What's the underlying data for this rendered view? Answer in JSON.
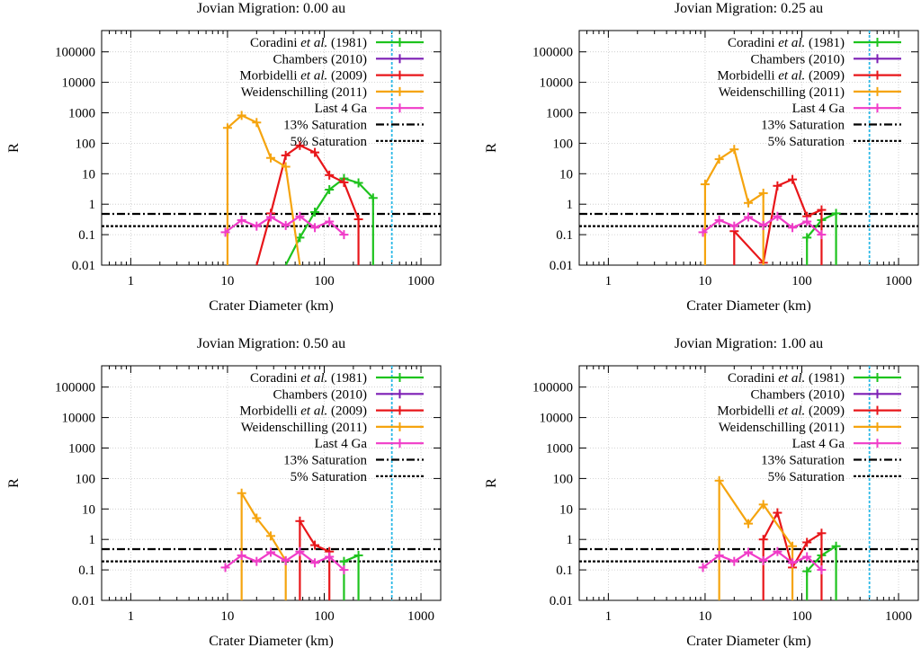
{
  "figure": {
    "x_axis_label": "Crater Diameter (km)",
    "y_axis_label": "R",
    "x_ticks": [
      "1",
      "10",
      "100",
      "1000"
    ],
    "y_ticks": [
      "0.01",
      "0.1",
      "1",
      "10",
      "100",
      "1000",
      "10000",
      "100000"
    ],
    "legend": [
      {
        "key": "coradini",
        "label": "Coradini",
        "italic": "et al.",
        "suffix": " (1981)",
        "color": "#1ec31e",
        "style": "solid"
      },
      {
        "key": "chambers",
        "label": "Chambers (2010)",
        "italic": "",
        "suffix": "",
        "color": "#7d1fb5",
        "style": "solid"
      },
      {
        "key": "morbidelli",
        "label": "Morbidelli",
        "italic": "et al.",
        "suffix": " (2009)",
        "color": "#e8161a",
        "style": "solid"
      },
      {
        "key": "weidenschilling",
        "label": "Weidenschilling (2011)",
        "italic": "",
        "suffix": "",
        "color": "#f5a40e",
        "style": "solid"
      },
      {
        "key": "last4ga",
        "label": "Last 4 Ga",
        "italic": "",
        "suffix": "",
        "color": "#f03cc8",
        "style": "solid"
      },
      {
        "key": "sat13",
        "label": "13% Saturation",
        "italic": "",
        "suffix": "",
        "color": "#000000",
        "style": "dashdot"
      },
      {
        "key": "sat5",
        "label": "5% Saturation",
        "italic": "",
        "suffix": "",
        "color": "#000000",
        "style": "dotted"
      }
    ]
  },
  "chart_data": [
    {
      "type": "line",
      "title": "Jovian Migration: 0.00 au",
      "xlabel": "Crater Diameter (km)",
      "ylabel": "R",
      "x_scale": "log",
      "y_scale": "log",
      "xlim": [
        0.5,
        1600
      ],
      "ylim": [
        0.01,
        500000
      ],
      "vline_x": 500,
      "saturation": {
        "sat13": 0.48,
        "sat5": 0.19
      },
      "series": [
        {
          "key": "coradini",
          "x": [
            40,
            56,
            80,
            113,
            160,
            226,
            320
          ],
          "y": [
            0.01,
            0.08,
            0.55,
            3.0,
            7.0,
            5.0,
            1.6
          ]
        },
        {
          "key": "morbidelli",
          "x": [
            20,
            28,
            40,
            56,
            80,
            113,
            160,
            226
          ],
          "y": [
            0.01,
            0.5,
            40,
            85,
            50,
            9,
            5.2,
            0.32
          ]
        },
        {
          "key": "weidenschilling",
          "x": [
            10,
            14,
            20,
            28,
            40,
            56
          ],
          "y": [
            320,
            820,
            480,
            33,
            17,
            0.01
          ]
        },
        {
          "key": "last4ga",
          "x": [
            9.5,
            14,
            20,
            28,
            40,
            56,
            80,
            113,
            160
          ],
          "y": [
            0.12,
            0.3,
            0.19,
            0.38,
            0.2,
            0.4,
            0.17,
            0.27,
            0.1
          ]
        }
      ]
    },
    {
      "type": "line",
      "title": "Jovian Migration: 0.25 au",
      "xlabel": "Crater Diameter (km)",
      "ylabel": "R",
      "x_scale": "log",
      "y_scale": "log",
      "xlim": [
        0.5,
        1600
      ],
      "ylim": [
        0.01,
        500000
      ],
      "vline_x": 500,
      "saturation": {
        "sat13": 0.48,
        "sat5": 0.19
      },
      "series": [
        {
          "key": "coradini",
          "x": [
            113,
            160,
            226
          ],
          "y": [
            0.08,
            0.3,
            0.5
          ]
        },
        {
          "key": "morbidelli",
          "x": [
            20,
            40,
            56,
            80,
            113,
            160
          ],
          "y": [
            0.13,
            0.012,
            4.0,
            6.5,
            0.4,
            0.65
          ]
        },
        {
          "key": "weidenschilling",
          "x": [
            10,
            14,
            20,
            28,
            40
          ],
          "y": [
            4.5,
            30,
            63,
            1.1,
            2.3
          ]
        },
        {
          "key": "last4ga",
          "x": [
            9.5,
            14,
            20,
            28,
            40,
            56,
            80,
            113,
            160
          ],
          "y": [
            0.12,
            0.3,
            0.19,
            0.38,
            0.2,
            0.4,
            0.17,
            0.27,
            0.1
          ]
        }
      ]
    },
    {
      "type": "line",
      "title": "Jovian Migration: 0.50 au",
      "xlabel": "Crater Diameter (km)",
      "ylabel": "R",
      "x_scale": "log",
      "y_scale": "log",
      "xlim": [
        0.5,
        1600
      ],
      "ylim": [
        0.01,
        500000
      ],
      "vline_x": 500,
      "saturation": {
        "sat13": 0.48,
        "sat5": 0.19
      },
      "series": [
        {
          "key": "coradini",
          "x": [
            160,
            226
          ],
          "y": [
            0.19,
            0.3
          ]
        },
        {
          "key": "morbidelli",
          "x": [
            56,
            80,
            113
          ],
          "y": [
            4.0,
            0.65,
            0.4
          ]
        },
        {
          "key": "weidenschilling",
          "x": [
            14,
            20,
            28,
            40
          ],
          "y": [
            33,
            5.0,
            1.3,
            0.2
          ]
        },
        {
          "key": "last4ga",
          "x": [
            9.5,
            14,
            20,
            28,
            40,
            56,
            80,
            113,
            160
          ],
          "y": [
            0.12,
            0.3,
            0.19,
            0.38,
            0.2,
            0.4,
            0.17,
            0.27,
            0.1
          ]
        }
      ]
    },
    {
      "type": "line",
      "title": "Jovian Migration: 1.00 au",
      "xlabel": "Crater Diameter (km)",
      "ylabel": "R",
      "x_scale": "log",
      "y_scale": "log",
      "xlim": [
        0.5,
        1600
      ],
      "ylim": [
        0.01,
        500000
      ],
      "vline_x": 500,
      "saturation": {
        "sat13": 0.48,
        "sat5": 0.19
      },
      "series": [
        {
          "key": "coradini",
          "x": [
            113,
            160,
            226
          ],
          "y": [
            0.09,
            0.3,
            0.6
          ]
        },
        {
          "key": "morbidelli",
          "x": [
            40,
            56,
            80,
            113,
            160
          ],
          "y": [
            1.0,
            7.5,
            0.12,
            0.8,
            1.6
          ]
        },
        {
          "key": "weidenschilling",
          "x": [
            14,
            28,
            40,
            80
          ],
          "y": [
            85,
            3.3,
            14,
            0.6
          ]
        },
        {
          "key": "last4ga",
          "x": [
            9.5,
            14,
            20,
            28,
            40,
            56,
            80,
            113,
            160
          ],
          "y": [
            0.12,
            0.3,
            0.19,
            0.38,
            0.2,
            0.4,
            0.17,
            0.27,
            0.1
          ]
        }
      ]
    }
  ]
}
